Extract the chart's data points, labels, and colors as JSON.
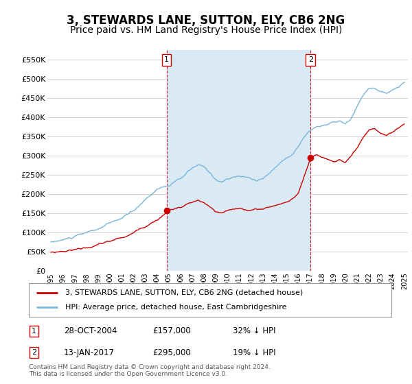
{
  "title": "3, STEWARDS LANE, SUTTON, ELY, CB6 2NG",
  "subtitle": "Price paid vs. HM Land Registry's House Price Index (HPI)",
  "ylim": [
    0,
    575000
  ],
  "yticks": [
    0,
    50000,
    100000,
    150000,
    200000,
    250000,
    300000,
    350000,
    400000,
    450000,
    500000,
    550000
  ],
  "ytick_labels": [
    "£0",
    "£50K",
    "£100K",
    "£150K",
    "£200K",
    "£250K",
    "£300K",
    "£350K",
    "£400K",
    "£450K",
    "£500K",
    "£550K"
  ],
  "hpi_color": "#7ab4d8",
  "hpi_fill_color": "#daeaf5",
  "price_color": "#cc0000",
  "marker1_date": 2004.82,
  "marker1_price": 157000,
  "marker2_date": 2017.04,
  "marker2_price": 295000,
  "legend_line1": "3, STEWARDS LANE, SUTTON, ELY, CB6 2NG (detached house)",
  "legend_line2": "HPI: Average price, detached house, East Cambridgeshire",
  "annotation1_date": "28-OCT-2004",
  "annotation1_price": "£157,000",
  "annotation1_hpi": "32% ↓ HPI",
  "annotation2_date": "13-JAN-2017",
  "annotation2_price": "£295,000",
  "annotation2_hpi": "19% ↓ HPI",
  "footer": "Contains HM Land Registry data © Crown copyright and database right 2024.\nThis data is licensed under the Open Government Licence v3.0.",
  "background_color": "#ffffff",
  "grid_color": "#cccccc",
  "title_fontsize": 12,
  "subtitle_fontsize": 10
}
